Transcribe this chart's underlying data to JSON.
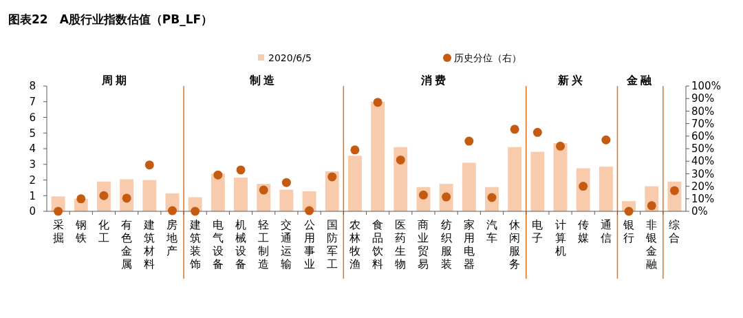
{
  "chart_data": {
    "type": "bar",
    "title": "图表22　A股行业指数估值（PB_LF）",
    "categories": [
      "采掘",
      "钢铁",
      "化工",
      "有色金属",
      "建筑材料",
      "房地产",
      "建筑装饰",
      "电气设备",
      "机械设备",
      "轻工制造",
      "交通运输",
      "公用事业",
      "国防军工",
      "农林牧渔",
      "食品饮料",
      "医药生物",
      "商业贸易",
      "纺织服装",
      "家用电器",
      "汽车",
      "休闲服务",
      "电子",
      "计算机",
      "传媒",
      "通信",
      "银行",
      "非银金融",
      "综合"
    ],
    "series": [
      {
        "name": "2020/6/5",
        "color": "#f8cbad",
        "values": [
          0.95,
          0.8,
          1.9,
          2.05,
          2.0,
          1.15,
          0.9,
          2.4,
          2.15,
          1.75,
          1.38,
          1.28,
          2.55,
          3.55,
          7.0,
          4.1,
          1.55,
          1.75,
          3.1,
          1.55,
          4.1,
          3.8,
          4.35,
          2.75,
          2.85,
          0.65,
          1.6,
          1.9
        ]
      },
      {
        "name": "历史分位（右）",
        "type": "scatter",
        "axis": "y2",
        "marker": "circle",
        "color": "#c55a11",
        "values": [
          0,
          10,
          12.5,
          10.5,
          37,
          0.5,
          0,
          29,
          33,
          17,
          23,
          0.5,
          27.5,
          49,
          87,
          41,
          13,
          11.5,
          56,
          11,
          65.5,
          63,
          52,
          20,
          57,
          0,
          4.5,
          16.5
        ]
      }
    ],
    "ylim": [
      0,
      8
    ],
    "yticks": [
      0,
      1,
      2,
      3,
      4,
      5,
      6,
      7,
      8
    ],
    "y2lim": [
      0,
      100
    ],
    "y2ticks": [
      {
        "value": 0,
        "label": "0%"
      },
      {
        "value": 10,
        "label": "10%"
      },
      {
        "value": 20,
        "label": "20%"
      },
      {
        "value": 30,
        "label": "30%"
      },
      {
        "value": 40,
        "label": "40%"
      },
      {
        "value": 50,
        "label": "50%"
      },
      {
        "value": 60,
        "label": "60%"
      },
      {
        "value": 70,
        "label": "70%"
      },
      {
        "value": 80,
        "label": "80%"
      },
      {
        "value": 90,
        "label": "90%"
      },
      {
        "value": 100,
        "label": "100%"
      }
    ],
    "annotations": [
      "周期",
      "制造",
      "消费",
      "新兴",
      "金融"
    ],
    "legend": "top",
    "grid": false
  }
}
